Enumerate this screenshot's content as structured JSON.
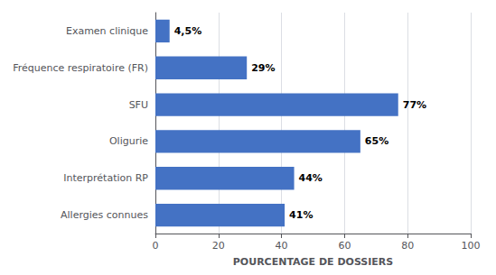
{
  "chart_data": {
    "type": "bar",
    "orientation": "horizontal",
    "categories": [
      "Allergies connues",
      "Interprétation RP",
      "Oligurie",
      "SFU",
      "Fréquence respiratoire (FR)",
      "Examen clinique"
    ],
    "values": [
      41,
      44,
      65,
      77,
      29,
      4.5
    ],
    "value_labels": [
      "41%",
      "44%",
      "65%",
      "77%",
      "29%",
      "4,5%"
    ],
    "data_labels": true,
    "color": "#4472C4",
    "xlabel": "POURCENTAGE DE DOSSIERS",
    "xlim": [
      0,
      100
    ],
    "xticks": [
      0,
      20,
      40,
      60,
      80,
      100
    ],
    "grid": true
  }
}
